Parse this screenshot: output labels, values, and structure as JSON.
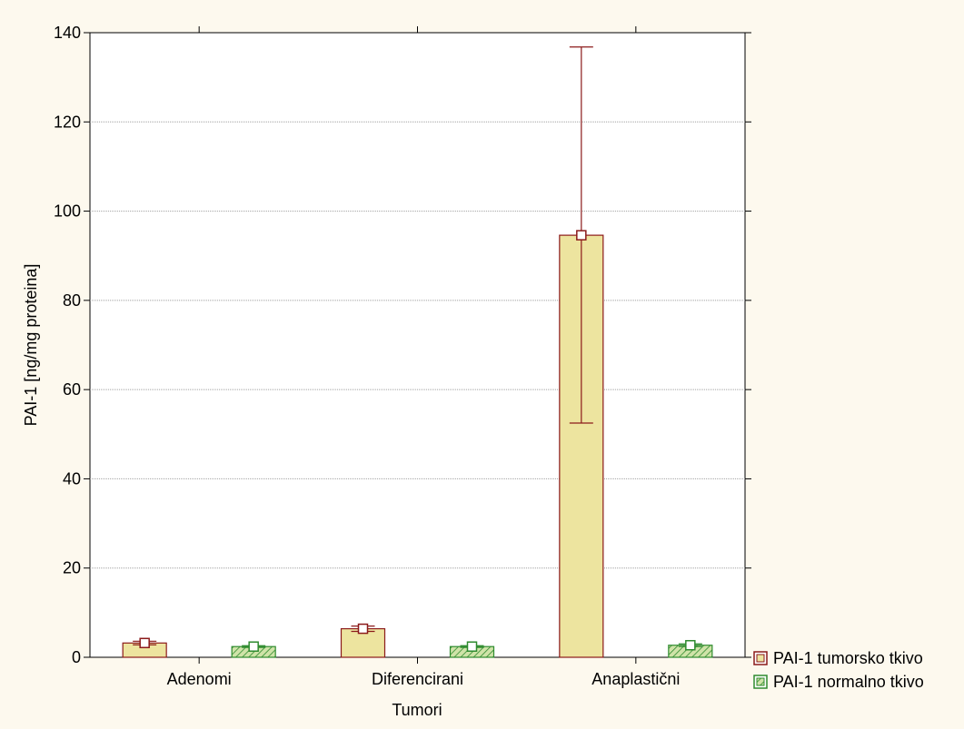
{
  "chart_data": {
    "type": "bar",
    "title": "",
    "xlabel": "Tumori",
    "ylabel": "PAI-1 [ng/mg proteina]",
    "ylim": [
      0,
      140
    ],
    "yticks": [
      0,
      20,
      40,
      60,
      80,
      100,
      120,
      140
    ],
    "categories": [
      "Adenomi",
      "Diferencirani",
      "Anaplastični"
    ],
    "grid": true,
    "legend": "bottom-right",
    "series": [
      {
        "name": "PAI-1 tumorsko tkivo",
        "values": [
          3.2,
          6.4,
          94.6
        ],
        "error_low": [
          2.8,
          5.8,
          52.5
        ],
        "error_high": [
          3.6,
          7.0,
          136.8
        ],
        "fill": "#ede49f",
        "stroke": "#8b1a1a",
        "pattern": "solid"
      },
      {
        "name": "PAI-1 normalno tkivo",
        "values": [
          2.4,
          2.4,
          2.7
        ],
        "error_low": [
          2.2,
          2.2,
          2.4
        ],
        "error_high": [
          2.6,
          2.6,
          3.0
        ],
        "fill": "#cfe3a8",
        "stroke": "#2e8b2e",
        "pattern": "hatched"
      }
    ]
  }
}
